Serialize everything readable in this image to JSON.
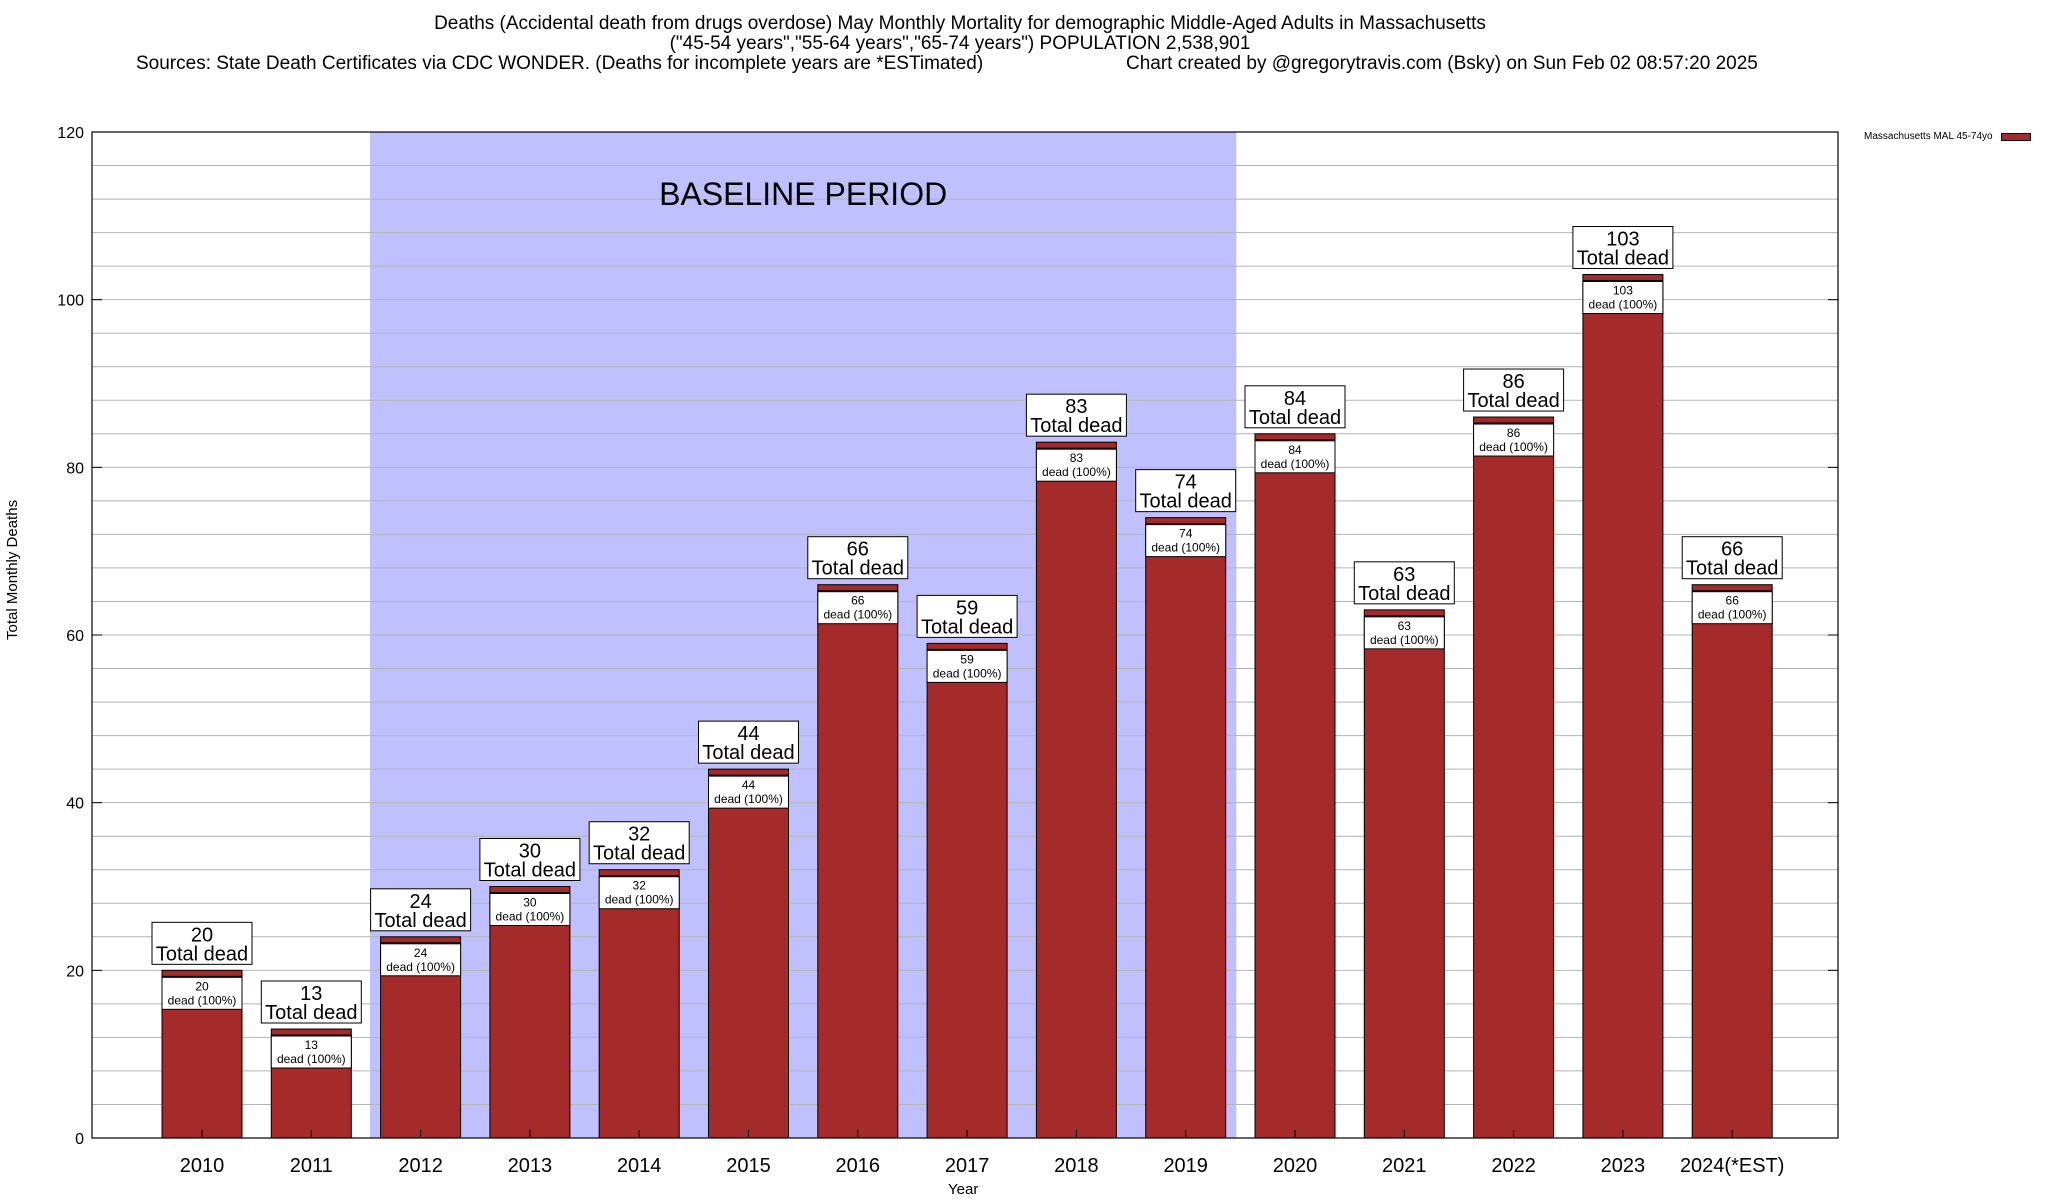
{
  "title": {
    "line1": "Deaths (Accidental death from drugs overdose) May Monthly Mortality for demographic Middle-Aged Adults in Massachusetts",
    "line2": "(\"45-54 years\",\"55-64 years\",\"65-74 years\") POPULATION 2,538,901",
    "line3": "Sources: State Death Certificates via CDC WONDER. (Deaths for incomplete years are *ESTimated)",
    "line4": "Chart created by @gregorytravis.com (Bsky) on Sun Feb 02 08:57:20 2025"
  },
  "legend": {
    "label": "Massachusetts MAL 45-74yo"
  },
  "colors": {
    "bar": "#a52a2a",
    "baseline": "#c0c0ff",
    "grid": "#b4b4b4"
  },
  "chart_data": {
    "type": "bar",
    "categories": [
      "2010",
      "2011",
      "2012",
      "2013",
      "2014",
      "2015",
      "2016",
      "2017",
      "2018",
      "2019",
      "2020",
      "2021",
      "2022",
      "2023",
      "2024(*EST)"
    ],
    "series": [
      {
        "name": "Massachusetts MAL 45-74yo",
        "values": [
          20,
          13,
          24,
          30,
          32,
          44,
          66,
          59,
          83,
          74,
          84,
          63,
          86,
          103,
          66
        ]
      }
    ],
    "ylabel": "Total Monthly Deaths",
    "xlabel": "Year",
    "ylim": [
      0,
      120
    ],
    "yticks": [
      0,
      20,
      40,
      60,
      80,
      100,
      120
    ],
    "total_label": "Total dead",
    "bar_label_suffix": "dead (100%)",
    "baseline": {
      "label": "BASELINE PERIOD",
      "from": "2012",
      "to": "2019"
    },
    "legend_position": "top-right"
  }
}
